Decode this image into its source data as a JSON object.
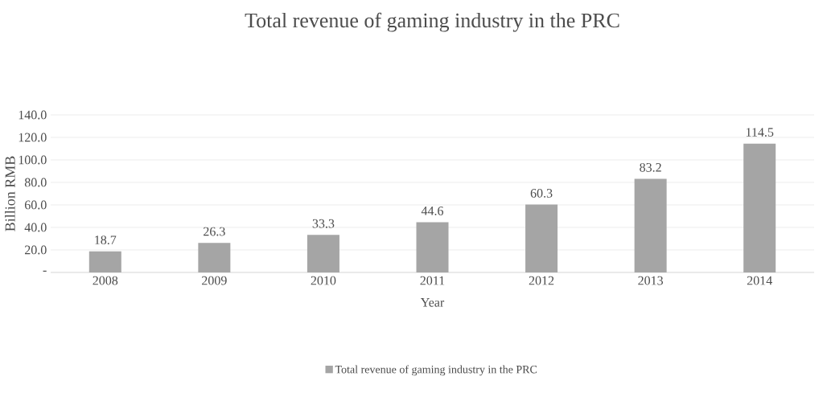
{
  "chart_data": {
    "type": "bar",
    "title": "Total revenue of gaming industry in the PRC",
    "xlabel": "Year",
    "ylabel": "Billion RMB",
    "categories": [
      "2008",
      "2009",
      "2010",
      "2011",
      "2012",
      "2013",
      "2014"
    ],
    "series": [
      {
        "name": "Total revenue of gaming industry in the PRC",
        "color": "#a5a5a5",
        "values": [
          18.7,
          26.3,
          33.3,
          44.6,
          60.3,
          83.2,
          114.5
        ]
      }
    ],
    "ylim": [
      0,
      140
    ],
    "yticks": [
      {
        "value": 0,
        "label": "-"
      },
      {
        "value": 20,
        "label": "20.0"
      },
      {
        "value": 40,
        "label": "40.0"
      },
      {
        "value": 60,
        "label": "60.0"
      },
      {
        "value": 80,
        "label": "80.0"
      },
      {
        "value": 100,
        "label": "100.0"
      },
      {
        "value": 120,
        "label": "120.0"
      },
      {
        "value": 140,
        "label": "140.0"
      }
    ],
    "data_labels": true,
    "grid": "y",
    "legend": "bottom"
  }
}
